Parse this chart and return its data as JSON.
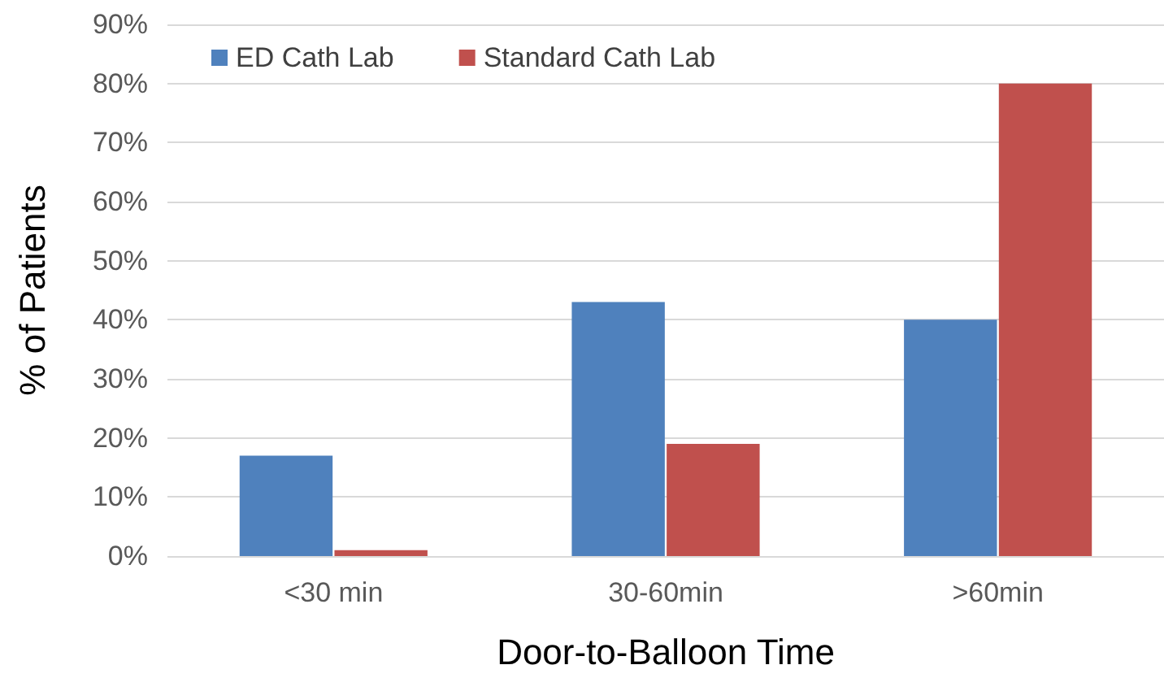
{
  "chart_data": {
    "type": "bar",
    "xlabel": "Door-to-Balloon Time",
    "ylabel": "% of Patients",
    "categories": [
      "<30 min",
      "30-60min",
      ">60min"
    ],
    "series": [
      {
        "name": "ED Cath Lab",
        "color": "#4f81bd",
        "values": [
          17,
          43,
          40
        ]
      },
      {
        "name": "Standard Cath Lab",
        "color": "#c0504d",
        "values": [
          1,
          19,
          80
        ]
      }
    ],
    "ylim": [
      0,
      90
    ],
    "yticks": [
      {
        "value": 0,
        "label": "0%"
      },
      {
        "value": 10,
        "label": "10%"
      },
      {
        "value": 20,
        "label": "20%"
      },
      {
        "value": 30,
        "label": "30%"
      },
      {
        "value": 40,
        "label": "40%"
      },
      {
        "value": 50,
        "label": "50%"
      },
      {
        "value": 60,
        "label": "60%"
      },
      {
        "value": 70,
        "label": "70%"
      },
      {
        "value": 80,
        "label": "80%"
      },
      {
        "value": 90,
        "label": "90%"
      }
    ],
    "grid": "y",
    "legend": "top left"
  }
}
